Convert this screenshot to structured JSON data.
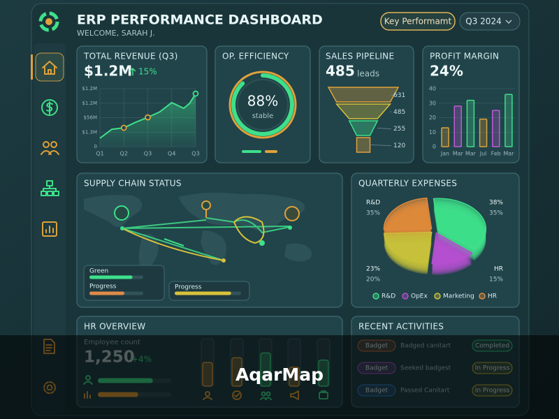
{
  "header": {
    "title": "ERP PERFORMANCE DASHBOARD",
    "welcome": "WELCOME, SARAH J.",
    "button": "Key Performamt",
    "period": "Q3 2024"
  },
  "revenue": {
    "title": "TOTAL REVENUE (Q3)",
    "value": "$1.2M",
    "change": "15%",
    "chart": {
      "type": "line",
      "categories": [
        "Q1",
        "Q2",
        "Q3",
        "Q4",
        "Q3"
      ],
      "x": [
        0,
        0.5,
        1,
        1.5,
        2,
        2.5,
        3,
        3.5,
        3.75,
        4
      ],
      "values": [
        0.58,
        1.2,
        1.3,
        1.69,
        2.02,
        2.4,
        3.04,
        2.65,
        2.99,
        3.66
      ],
      "xlim": [
        0,
        4
      ],
      "ylim": [
        0,
        4
      ],
      "yticks": [
        {
          "value": 0,
          "label": "0"
        },
        {
          "value": 1,
          "label": "$1.3M"
        },
        {
          "value": 2,
          "label": "$56M"
        },
        {
          "value": 3,
          "label": "$1.2M"
        },
        {
          "value": 4,
          "label": "$1.2M"
        }
      ],
      "color": "#3ee08a"
    }
  },
  "efficiency": {
    "title": "OP. EFFICIENCY",
    "value": 88,
    "value_label": "88%",
    "note": "stable"
  },
  "pipeline": {
    "title": "SALES PIPELINE",
    "value": 485,
    "unit": "leads",
    "funnel": [
      631,
      485,
      255,
      120
    ]
  },
  "profit": {
    "title": "PROFIT MARGIN",
    "value": "24%",
    "chart": {
      "type": "bar",
      "categories": [
        "Jan",
        "Mar",
        "Mar",
        "Jul",
        "Feb",
        "Mar"
      ],
      "values": [
        13,
        28,
        32,
        19,
        25,
        36
      ],
      "colors": [
        "#e0a13a",
        "#c05ad8",
        "#3ee08a",
        "#e0a13a",
        "#c05ad8",
        "#3ee08a"
      ],
      "ylim": [
        0,
        40
      ],
      "yticks": [
        0,
        10,
        20,
        30,
        40
      ]
    }
  },
  "supply": {
    "title": "SUPPLY CHAIN STATUS",
    "progress": [
      {
        "label": "Green",
        "value": 80,
        "color": "#3ee08a"
      },
      {
        "label": "Progress",
        "value": 65,
        "color": "#e08a4a"
      },
      {
        "label": "Progress",
        "value": 85,
        "color": "#d8c23a"
      }
    ]
  },
  "expenses": {
    "title": "QUARTERLY EXPENSES",
    "chart": {
      "type": "pie",
      "series": [
        {
          "name": "R&D",
          "color": "#3ee08a",
          "value": 38
        },
        {
          "name": "OpEx",
          "color": "#b64fd0",
          "value": 15
        },
        {
          "name": "Marketing",
          "color": "#c9c23a",
          "value": 23
        },
        {
          "name": "HR",
          "color": "#e08a3a",
          "value": 24
        }
      ],
      "annotations": [
        "R&D",
        "35%",
        "38%",
        "35%",
        "23%",
        "20%",
        "HR",
        "15%"
      ]
    }
  },
  "hr": {
    "title": "HR OVERVIEW",
    "subtitle": "Employee count",
    "value": "1,250",
    "change": "+4%",
    "bars": [
      75,
      55
    ],
    "columns": [
      50,
      60,
      70,
      40,
      55
    ]
  },
  "activities": {
    "title": "RECENT ACTIVITIES",
    "rows": [
      [
        "Badget",
        "Badged canitart",
        "Completed"
      ],
      [
        "Badget",
        "Seeked badgest",
        "In Progress"
      ],
      [
        "Badget",
        "Passed Canitart",
        "In Progress"
      ]
    ]
  },
  "watermark": "AqarMap"
}
